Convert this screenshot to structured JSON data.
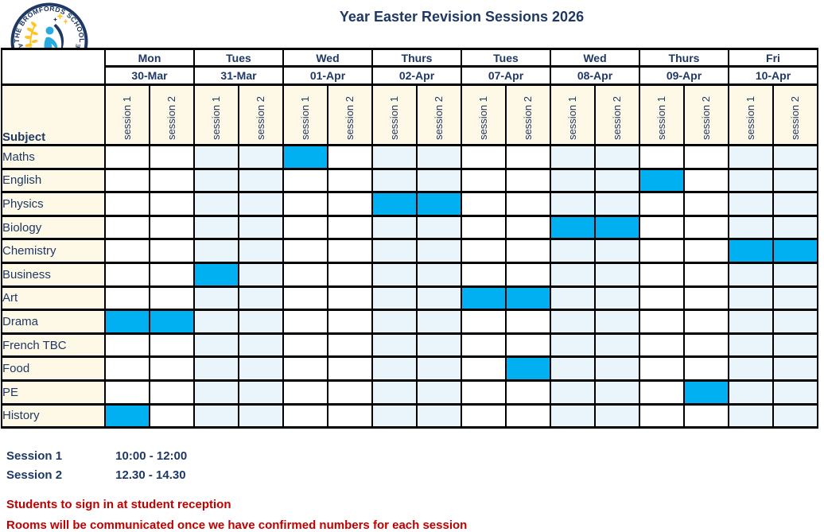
{
  "title": "Year Easter Revision Sessions 2026",
  "logo": {
    "arc_top": "THE BROMFORDS SCHOOL",
    "arc_bottom": "ACHIEVE ENRICH PREPARE"
  },
  "colors": {
    "text_navy": "#1F3864",
    "note_red": "#C00000",
    "session_highlight": "#00B0F0",
    "column_tint": "#EAF5FB",
    "label_cream": "#FDF9E6",
    "grid_black": "#000000",
    "background": "#FFFFFF",
    "logo_blue": "#29ABE2",
    "logo_yellow": "#FFC425"
  },
  "timetable": {
    "subject_header": "Subject",
    "session_labels": [
      "session 1",
      "session 2"
    ],
    "days": [
      {
        "day": "Mon",
        "date": "30-Mar",
        "shaded": false
      },
      {
        "day": "Tues",
        "date": "31-Mar",
        "shaded": true
      },
      {
        "day": "Wed",
        "date": "01-Apr",
        "shaded": false
      },
      {
        "day": "Thurs",
        "date": "02-Apr",
        "shaded": true
      },
      {
        "day": "Tues",
        "date": "07-Apr",
        "shaded": false
      },
      {
        "day": "Wed",
        "date": "08-Apr",
        "shaded": true
      },
      {
        "day": "Thurs",
        "date": "09-Apr",
        "shaded": false
      },
      {
        "day": "Fri",
        "date": "10-Apr",
        "shaded": true
      }
    ],
    "subjects": [
      {
        "name": "Maths",
        "booked": [
          {
            "date": "01-Apr",
            "session": 1
          }
        ]
      },
      {
        "name": "English",
        "booked": [
          {
            "date": "09-Apr",
            "session": 1
          }
        ]
      },
      {
        "name": "Physics",
        "booked": [
          {
            "date": "02-Apr",
            "session": 1
          },
          {
            "date": "02-Apr",
            "session": 2
          }
        ]
      },
      {
        "name": "Biology",
        "booked": [
          {
            "date": "08-Apr",
            "session": 1
          },
          {
            "date": "08-Apr",
            "session": 2
          }
        ]
      },
      {
        "name": "Chemistry",
        "booked": [
          {
            "date": "10-Apr",
            "session": 1
          },
          {
            "date": "10-Apr",
            "session": 2
          }
        ]
      },
      {
        "name": "Business",
        "booked": [
          {
            "date": "31-Mar",
            "session": 1
          }
        ]
      },
      {
        "name": "Art",
        "booked": [
          {
            "date": "07-Apr",
            "session": 1
          },
          {
            "date": "07-Apr",
            "session": 2
          }
        ]
      },
      {
        "name": "Drama",
        "booked": [
          {
            "date": "30-Mar",
            "session": 1
          },
          {
            "date": "30-Mar",
            "session": 2
          }
        ]
      },
      {
        "name": "French TBC",
        "booked": []
      },
      {
        "name": "Food",
        "booked": [
          {
            "date": "07-Apr",
            "session": 2
          }
        ]
      },
      {
        "name": "PE",
        "booked": [
          {
            "date": "09-Apr",
            "session": 2
          }
        ]
      },
      {
        "name": "History",
        "booked": [
          {
            "date": "30-Mar",
            "session": 1
          }
        ]
      }
    ]
  },
  "footer": {
    "session_times": [
      {
        "label": "Session 1",
        "time": "10:00 - 12:00"
      },
      {
        "label": "Session 2",
        "time": "12.30 - 14.30"
      }
    ],
    "notes": [
      "Students to sign in at student reception",
      "Rooms will be communicated once we have confirmed numbers for each session"
    ]
  }
}
